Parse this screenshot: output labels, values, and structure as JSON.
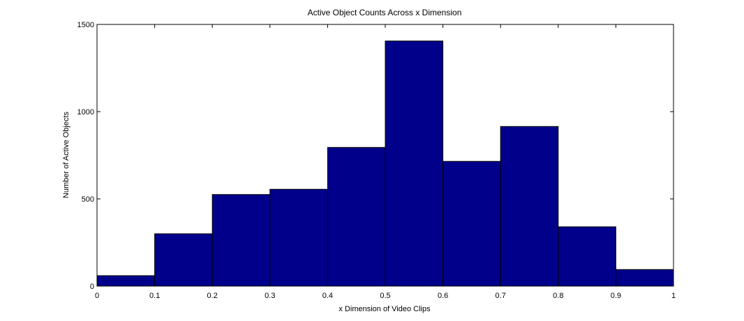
{
  "chart_data": {
    "type": "bar",
    "title": "Active Object Counts Across x Dimension",
    "xlabel": "x Dimension of Video Clips",
    "ylabel": "Number of Active Objects",
    "bin_edges": [
      0,
      0.1,
      0.2,
      0.3,
      0.4,
      0.5,
      0.6,
      0.7,
      0.8,
      0.9,
      1
    ],
    "values": [
      60,
      300,
      525,
      555,
      795,
      1405,
      715,
      915,
      340,
      95
    ],
    "xlim": [
      0,
      1
    ],
    "ylim": [
      0,
      1500
    ],
    "x_ticks": [
      "0",
      "0.1",
      "0.2",
      "0.3",
      "0.4",
      "0.5",
      "0.6",
      "0.7",
      "0.8",
      "0.9",
      "1"
    ],
    "y_ticks": [
      "0",
      "500",
      "1000",
      "1500"
    ],
    "grid": false,
    "bar_color": "#00008B",
    "edge_color": "#000000"
  }
}
